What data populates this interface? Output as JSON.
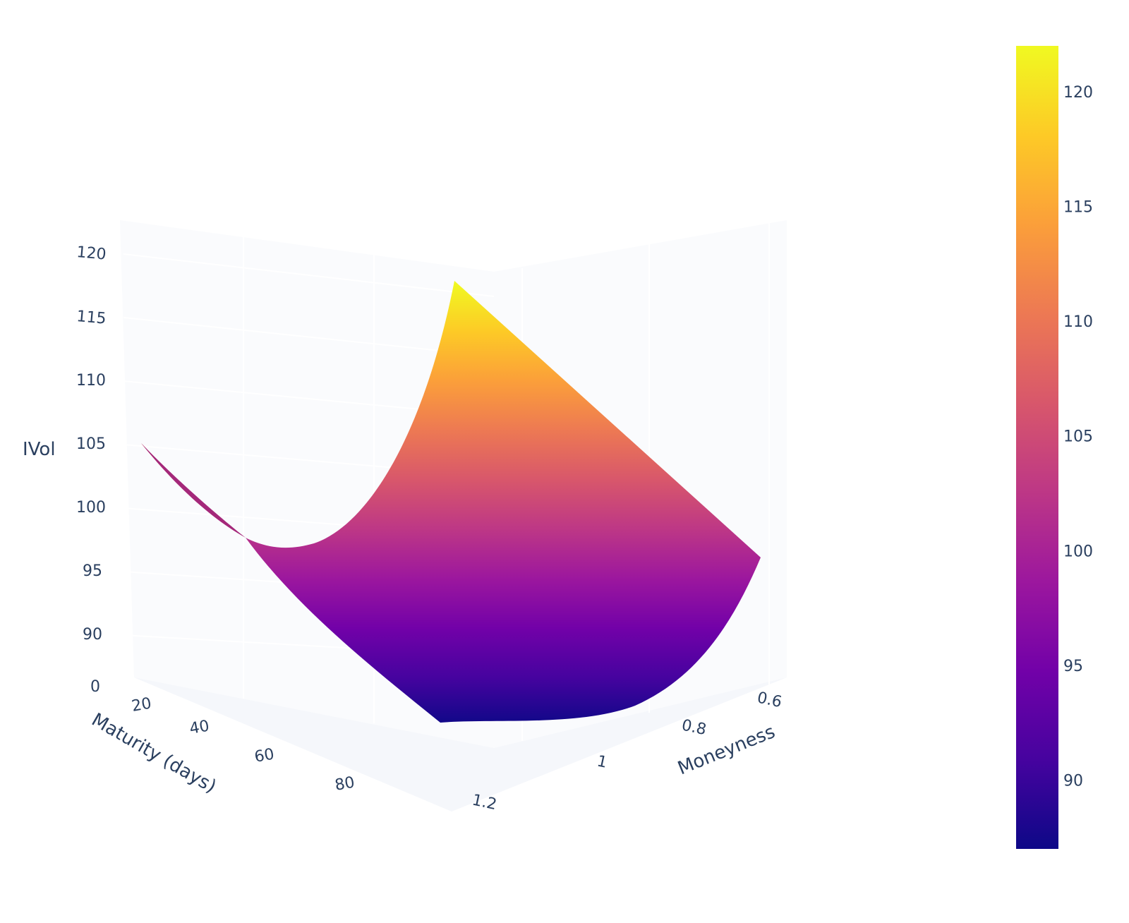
{
  "chart_data": {
    "type": "surface",
    "title": "",
    "axes": {
      "x": {
        "title": "Maturity (days)",
        "ticks": [
          "20",
          "40",
          "60",
          "80"
        ]
      },
      "y": {
        "title": "Moneyness",
        "ticks": [
          "0.6",
          "0.8",
          "1",
          "1.2"
        ]
      },
      "z": {
        "title": "IVol",
        "ticks": [
          "0",
          "90",
          "95",
          "100",
          "105",
          "110",
          "115",
          "120"
        ]
      }
    },
    "surface_corners": [
      {
        "maturity": 10,
        "moneyness": 0.5,
        "ivol": 122
      },
      {
        "maturity": 10,
        "moneyness": 1.2,
        "ivol": 104
      },
      {
        "maturity": 90,
        "moneyness": 0.5,
        "ivol": 96
      },
      {
        "maturity": 90,
        "moneyness": 1.2,
        "ivol": 87
      }
    ],
    "surface_minimum": {
      "maturity": 90,
      "moneyness": 1.0,
      "ivol": 87
    },
    "colorbar": {
      "colorscale": "Plasma",
      "range": [
        87,
        122
      ],
      "ticks": [
        "90",
        "95",
        "100",
        "105",
        "110",
        "115",
        "120"
      ],
      "colors": [
        "#0d0887",
        "#46039f",
        "#7201a8",
        "#9c179e",
        "#bd3786",
        "#d8576b",
        "#ed7953",
        "#fb9f3a",
        "#fdca26",
        "#f0f921"
      ]
    },
    "background_color": "#fafbfd",
    "grid": true
  }
}
